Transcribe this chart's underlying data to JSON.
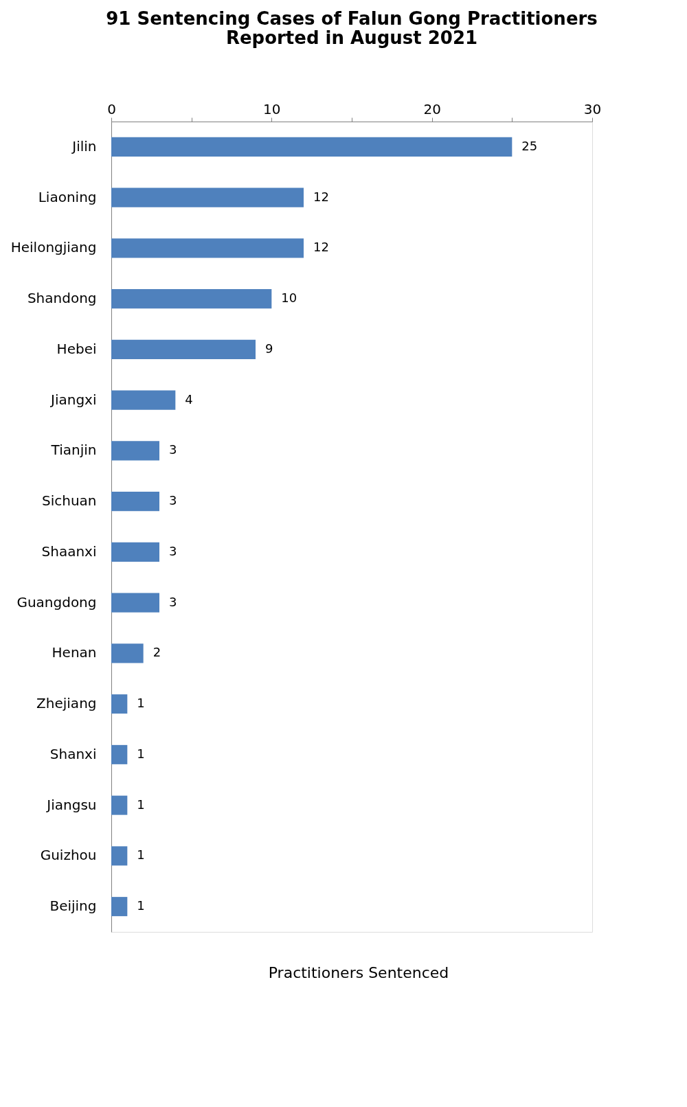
{
  "chart_data": {
    "type": "bar",
    "orientation": "horizontal",
    "title": "91 Sentencing Cases of Falun Gong Practitioners\nReported in August 2021",
    "xlabel": "Practitioners Sentenced",
    "categories": [
      "Jilin",
      "Liaoning",
      "Heilongjiang",
      "Shandong",
      "Hebei",
      "Jiangxi",
      "Tianjin",
      "Sichuan",
      "Shaanxi",
      "Guangdong",
      "Henan",
      "Zhejiang",
      "Shanxi",
      "Jiangsu",
      "Guizhou",
      "Beijing"
    ],
    "values": [
      25,
      12,
      12,
      10,
      9,
      4,
      3,
      3,
      3,
      3,
      2,
      1,
      1,
      1,
      1,
      1
    ],
    "color": "#4f81bd",
    "xlim": [
      0,
      30
    ],
    "xticks": [
      0,
      {
        "value": 5,
        "label": null
      },
      10,
      {
        "value": 15,
        "label": null
      },
      20,
      {
        "value": 25,
        "label": null
      },
      30
    ],
    "data_labels": true,
    "grid": false
  }
}
